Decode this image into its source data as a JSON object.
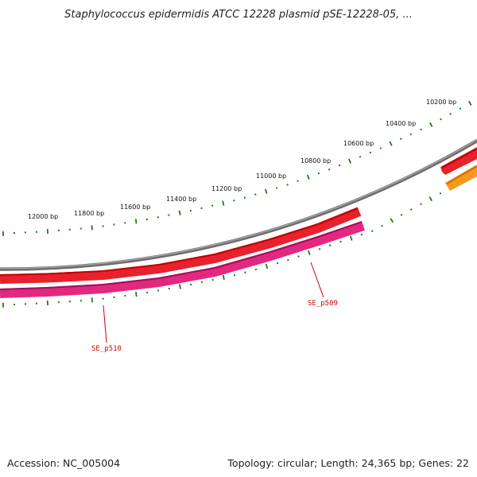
{
  "title": "Staphylococcus epidermidis ATCC 12228 plasmid pSE-12228-05, ...",
  "footer": {
    "accession": "Accession: NC_005004",
    "summary": "Topology: circular; Length: 24,365 bp; Genes: 22"
  },
  "scale": {
    "unit": "bp",
    "tick_labels": [
      "10200 bp",
      "10400 bp",
      "10600 bp",
      "10800 bp",
      "11000 bp",
      "11200 bp",
      "11400 bp",
      "11600 bp",
      "11800 bp",
      "12000 bp"
    ],
    "tick_color": "#1f7a1f"
  },
  "genes": [
    {
      "name": "SE_p509",
      "color": "#e8212d"
    },
    {
      "name": "SE_p510",
      "color": "#e3287f"
    }
  ],
  "colors": {
    "backbone": "#808080",
    "gene_forward": "#e8212d",
    "gene_reverse": "#e3287f",
    "gene_other": "#f39a1e",
    "label": "#cc0000"
  }
}
